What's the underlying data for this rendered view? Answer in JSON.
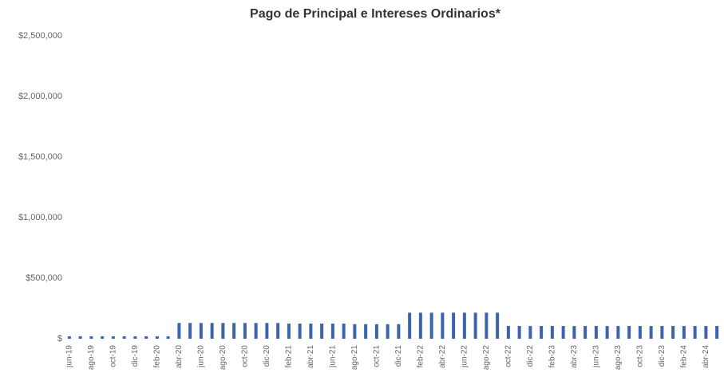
{
  "chart_data": {
    "type": "bar",
    "title": "Pago de Principal e Intereses Ordinarios*",
    "categories": [
      "jun-19",
      null,
      "ago-19",
      null,
      "oct-19",
      null,
      "dic-19",
      null,
      "feb-20",
      null,
      "abr-20",
      null,
      "jun-20",
      null,
      "ago-20",
      null,
      "oct-20",
      null,
      "dic-20",
      null,
      "feb-21",
      null,
      "abr-21",
      null,
      "jun-21",
      null,
      "ago-21",
      null,
      "oct-21",
      null,
      "dic-21",
      null,
      "feb-22",
      null,
      "abr-22",
      null,
      "jun-22",
      null,
      "ago-22",
      null,
      "oct-22",
      null,
      "dic-22",
      null,
      "feb-23",
      null,
      "abr-23",
      null,
      "jun-23",
      null,
      "ago-23",
      null,
      "oct-23",
      null,
      "dic-23",
      null,
      "feb-24",
      null,
      "abr-24",
      null
    ],
    "values": [
      20000,
      20000,
      20000,
      20000,
      20000,
      20000,
      20000,
      20000,
      20000,
      20000,
      130000,
      130000,
      130000,
      130000,
      130000,
      130000,
      130000,
      130000,
      130000,
      130000,
      125000,
      125000,
      125000,
      125000,
      125000,
      125000,
      120000,
      120000,
      120000,
      120000,
      120000,
      215000,
      215000,
      215000,
      215000,
      215000,
      215000,
      215000,
      215000,
      215000,
      105000,
      105000,
      105000,
      105000,
      105000,
      105000,
      105000,
      105000,
      105000,
      105000,
      105000,
      105000,
      105000,
      105000,
      105000,
      105000,
      105000,
      105000,
      105000,
      105000
    ],
    "color": "#3b64ad",
    "ylim": [
      0,
      2500000
    ],
    "yticks": [
      {
        "value": 0,
        "label": "$"
      },
      {
        "value": 500000,
        "label": "$500,000"
      },
      {
        "value": 1000000,
        "label": "$1,000,000"
      },
      {
        "value": 1500000,
        "label": "$1,500,000"
      },
      {
        "value": 2000000,
        "label": "$2,000,000"
      },
      {
        "value": 2500000,
        "label": "$2,500,000"
      }
    ],
    "grid": false
  }
}
